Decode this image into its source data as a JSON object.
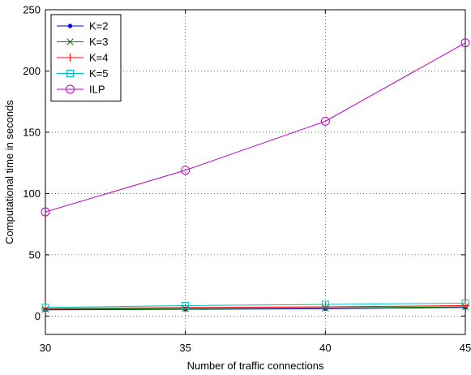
{
  "chart_data": {
    "type": "line",
    "xlabel": "Number of traffic connections",
    "ylabel": "Computational time in seconds",
    "x": [
      30,
      35,
      40,
      45
    ],
    "xlim": [
      30,
      45
    ],
    "ylim": [
      -15,
      250
    ],
    "xticks": [
      30,
      35,
      40,
      45
    ],
    "yticks": [
      0,
      50,
      100,
      150,
      200,
      250
    ],
    "grid": true,
    "legend_position": "top-left",
    "series": [
      {
        "name": "K=2",
        "values": [
          5,
          5.5,
          6,
          7
        ],
        "color": "#0000ff",
        "marker": "dot"
      },
      {
        "name": "K=3",
        "values": [
          5.5,
          6,
          6.5,
          7.5
        ],
        "color": "#007f00",
        "marker": "x"
      },
      {
        "name": "K=4",
        "values": [
          6,
          7,
          7.5,
          8.5
        ],
        "color": "#ff0000",
        "marker": "plus"
      },
      {
        "name": "K=5",
        "values": [
          7,
          8.5,
          9.5,
          10.5
        ],
        "color": "#00bfbf",
        "marker": "square"
      },
      {
        "name": "ILP",
        "values": [
          85,
          119,
          159,
          223
        ],
        "color": "#bf00bf",
        "marker": "circle"
      }
    ]
  }
}
